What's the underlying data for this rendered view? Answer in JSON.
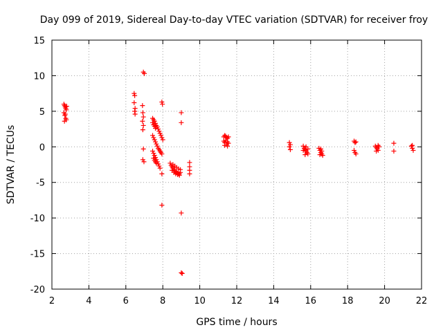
{
  "chart_data": {
    "type": "scatter",
    "title": "Day 099 of 2019, Sidereal Day-to-day VTEC variation (SDTVAR) for receiver froy",
    "xlabel": "GPS time / hours",
    "ylabel": "SDTVAR / TECUs",
    "xlim": [
      2,
      22
    ],
    "ylim": [
      -20,
      15
    ],
    "xticks": [
      2,
      4,
      6,
      8,
      10,
      12,
      14,
      16,
      18,
      20,
      22
    ],
    "yticks": [
      -20,
      -15,
      -10,
      -5,
      0,
      5,
      10,
      15
    ],
    "grid": true,
    "marker": "+",
    "color": "#ff0000",
    "series": [
      {
        "name": "SDTVAR",
        "points": [
          [
            2.65,
            6.0
          ],
          [
            2.68,
            5.8
          ],
          [
            2.72,
            5.6
          ],
          [
            2.75,
            5.4
          ],
          [
            2.78,
            5.2
          ],
          [
            2.65,
            4.8
          ],
          [
            2.7,
            4.4
          ],
          [
            2.75,
            4.0
          ],
          [
            2.78,
            3.8
          ],
          [
            2.68,
            3.6
          ],
          [
            2.8,
            5.7
          ],
          [
            2.72,
            4.6
          ],
          [
            6.45,
            7.5
          ],
          [
            6.48,
            7.2
          ],
          [
            6.45,
            6.2
          ],
          [
            6.5,
            5.4
          ],
          [
            6.48,
            5.0
          ],
          [
            6.5,
            4.6
          ],
          [
            6.95,
            10.5
          ],
          [
            7.0,
            10.3
          ],
          [
            6.9,
            5.8
          ],
          [
            6.92,
            4.8
          ],
          [
            6.95,
            4.2
          ],
          [
            6.9,
            3.6
          ],
          [
            6.95,
            3.0
          ],
          [
            6.92,
            2.4
          ],
          [
            6.95,
            -0.3
          ],
          [
            6.92,
            -1.8
          ],
          [
            6.98,
            -2.1
          ],
          [
            7.45,
            4.0
          ],
          [
            7.5,
            3.8
          ],
          [
            7.55,
            3.6
          ],
          [
            7.6,
            3.3
          ],
          [
            7.65,
            3.0
          ],
          [
            7.7,
            2.8
          ],
          [
            7.75,
            2.5
          ],
          [
            7.8,
            2.2
          ],
          [
            7.85,
            1.9
          ],
          [
            7.9,
            1.6
          ],
          [
            7.95,
            1.3
          ],
          [
            8.0,
            1.0
          ],
          [
            7.45,
            3.4
          ],
          [
            7.5,
            3.1
          ],
          [
            7.55,
            2.9
          ],
          [
            7.6,
            2.6
          ],
          [
            7.45,
            1.6
          ],
          [
            7.5,
            1.3
          ],
          [
            7.55,
            1.0
          ],
          [
            7.6,
            0.7
          ],
          [
            7.65,
            0.4
          ],
          [
            7.7,
            0.1
          ],
          [
            7.75,
            -0.2
          ],
          [
            7.8,
            -0.4
          ],
          [
            7.85,
            -0.6
          ],
          [
            7.9,
            -0.8
          ],
          [
            7.95,
            -1.0
          ],
          [
            7.45,
            -0.6
          ],
          [
            7.5,
            -0.9
          ],
          [
            7.55,
            -1.2
          ],
          [
            7.6,
            -1.5
          ],
          [
            7.65,
            -1.8
          ],
          [
            7.7,
            -2.1
          ],
          [
            7.75,
            -2.4
          ],
          [
            7.8,
            -2.7
          ],
          [
            7.85,
            -3.0
          ],
          [
            7.5,
            -1.6
          ],
          [
            7.55,
            -1.9
          ],
          [
            7.6,
            -2.1
          ],
          [
            7.65,
            -2.3
          ],
          [
            7.95,
            6.3
          ],
          [
            7.98,
            6.0
          ],
          [
            7.95,
            -3.8
          ],
          [
            7.95,
            -8.2
          ],
          [
            8.4,
            -2.3
          ],
          [
            8.45,
            -2.6
          ],
          [
            8.5,
            -2.8
          ],
          [
            8.55,
            -3.0
          ],
          [
            8.6,
            -3.2
          ],
          [
            8.65,
            -3.4
          ],
          [
            8.7,
            -3.5
          ],
          [
            8.75,
            -3.6
          ],
          [
            8.8,
            -3.7
          ],
          [
            8.85,
            -3.8
          ],
          [
            8.9,
            -3.8
          ],
          [
            8.95,
            -3.6
          ],
          [
            8.5,
            -3.3
          ],
          [
            8.6,
            -3.6
          ],
          [
            8.7,
            -3.8
          ],
          [
            8.8,
            -3.9
          ],
          [
            8.9,
            -4.0
          ],
          [
            8.55,
            -2.5
          ],
          [
            8.65,
            -2.7
          ],
          [
            8.75,
            -2.9
          ],
          [
            8.85,
            -3.1
          ],
          [
            8.95,
            -3.2
          ],
          [
            9.0,
            4.8
          ],
          [
            9.0,
            3.4
          ],
          [
            9.0,
            -9.3
          ],
          [
            9.0,
            -17.7
          ],
          [
            9.05,
            -17.8
          ],
          [
            9.45,
            -2.2
          ],
          [
            9.45,
            -2.8
          ],
          [
            9.45,
            -3.3
          ],
          [
            9.45,
            -3.8
          ],
          [
            11.3,
            1.4
          ],
          [
            11.35,
            1.6
          ],
          [
            11.4,
            1.5
          ],
          [
            11.45,
            1.3
          ],
          [
            11.5,
            1.2
          ],
          [
            11.55,
            1.4
          ],
          [
            11.3,
            0.8
          ],
          [
            11.35,
            0.6
          ],
          [
            11.4,
            0.9
          ],
          [
            11.45,
            0.4
          ],
          [
            11.5,
            0.7
          ],
          [
            11.55,
            0.5
          ],
          [
            11.35,
            0.2
          ],
          [
            11.5,
            0.1
          ],
          [
            14.85,
            0.6
          ],
          [
            14.9,
            0.3
          ],
          [
            14.85,
            0.0
          ],
          [
            14.9,
            -0.4
          ],
          [
            15.6,
            0.1
          ],
          [
            15.65,
            -0.2
          ],
          [
            15.7,
            -0.4
          ],
          [
            15.75,
            -0.6
          ],
          [
            15.8,
            -0.8
          ],
          [
            15.85,
            -1.0
          ],
          [
            15.7,
            -1.1
          ],
          [
            15.6,
            -0.5
          ],
          [
            15.75,
            0.0
          ],
          [
            15.85,
            -0.3
          ],
          [
            16.45,
            -0.2
          ],
          [
            16.5,
            -0.5
          ],
          [
            16.55,
            -0.8
          ],
          [
            16.6,
            -1.0
          ],
          [
            16.65,
            -1.2
          ],
          [
            16.55,
            -0.3
          ],
          [
            16.6,
            -0.6
          ],
          [
            16.5,
            -1.1
          ],
          [
            18.35,
            0.8
          ],
          [
            18.4,
            0.6
          ],
          [
            18.45,
            0.7
          ],
          [
            18.35,
            -0.5
          ],
          [
            18.4,
            -0.8
          ],
          [
            18.45,
            -1.0
          ],
          [
            19.5,
            0.1
          ],
          [
            19.55,
            -0.1
          ],
          [
            19.6,
            -0.3
          ],
          [
            19.65,
            -0.5
          ],
          [
            19.7,
            0.0
          ],
          [
            19.55,
            -0.6
          ],
          [
            19.65,
            0.2
          ],
          [
            20.5,
            0.5
          ],
          [
            20.5,
            -0.6
          ],
          [
            21.45,
            0.1
          ],
          [
            21.5,
            -0.2
          ],
          [
            21.55,
            -0.5
          ],
          [
            21.5,
            0.2
          ]
        ]
      }
    ]
  }
}
